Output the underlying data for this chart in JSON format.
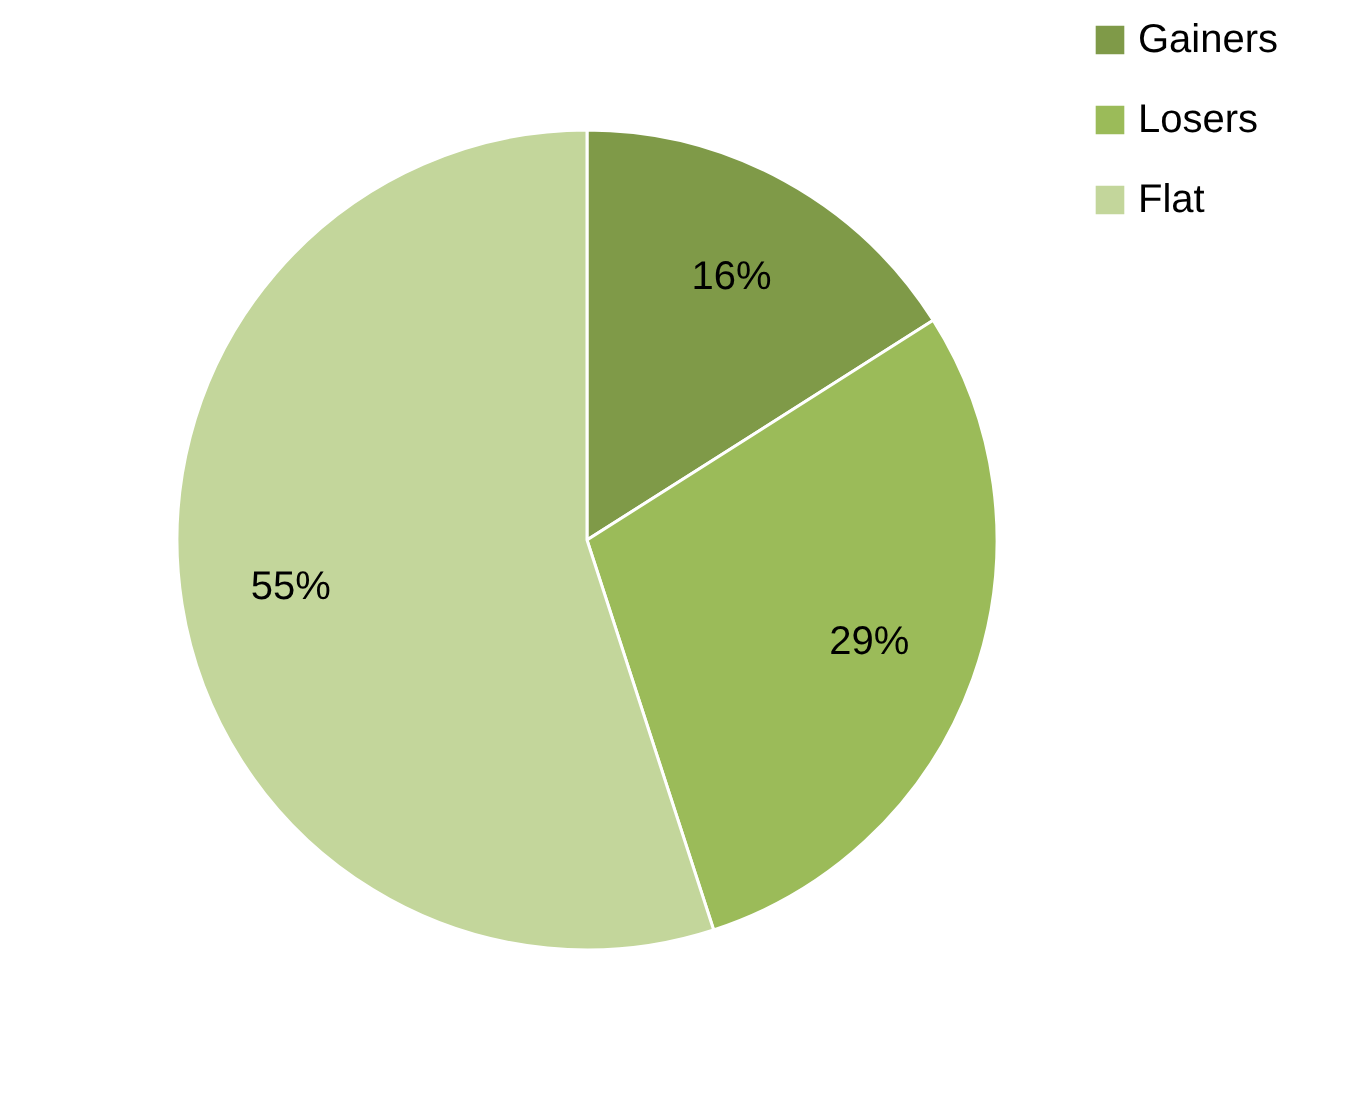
{
  "chart_data": {
    "type": "pie",
    "categories": [
      "Gainers",
      "Losers",
      "Flat"
    ],
    "values": [
      16,
      29,
      55
    ],
    "colors": [
      "#7f9a48",
      "#9bbb59",
      "#c3d69b"
    ],
    "value_labels": [
      "16%",
      "29%",
      "55%"
    ],
    "legend": "right"
  }
}
